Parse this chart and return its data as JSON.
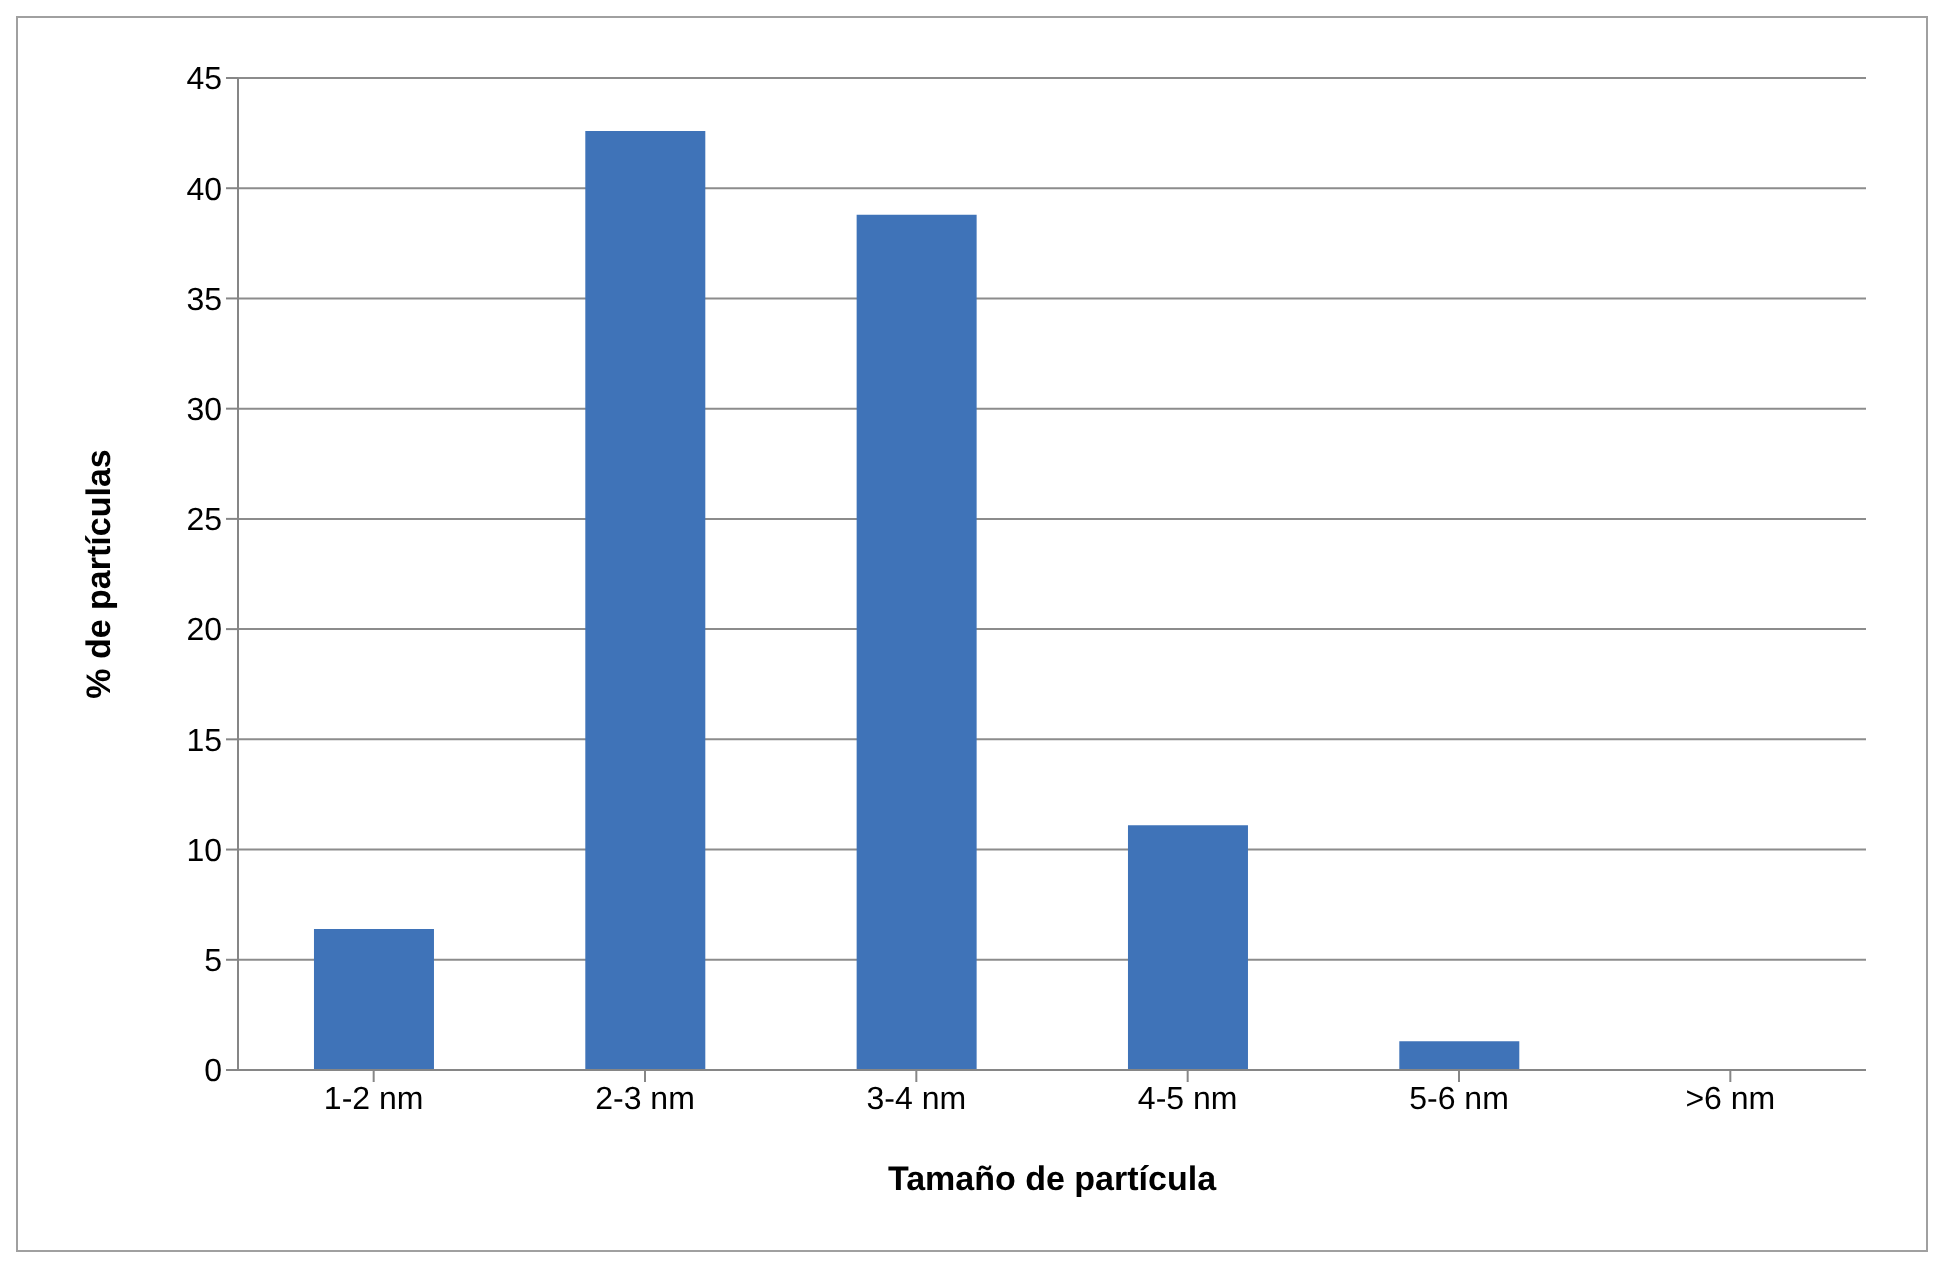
{
  "chart_data": {
    "type": "bar",
    "xlabel": "Tamaño de partícula",
    "ylabel": "% de partículas",
    "categories": [
      "1-2 nm",
      "2-3 nm",
      "3-4 nm",
      "4-5 nm",
      "5-6 nm",
      ">6 nm"
    ],
    "values": [
      6.4,
      42.6,
      38.8,
      11.1,
      1.3,
      0
    ],
    "color": "#3f73b8",
    "ylim": [
      0,
      45
    ],
    "yticks": [
      0,
      5,
      10,
      15,
      20,
      25,
      30,
      35,
      40,
      45
    ],
    "grid": "y"
  }
}
